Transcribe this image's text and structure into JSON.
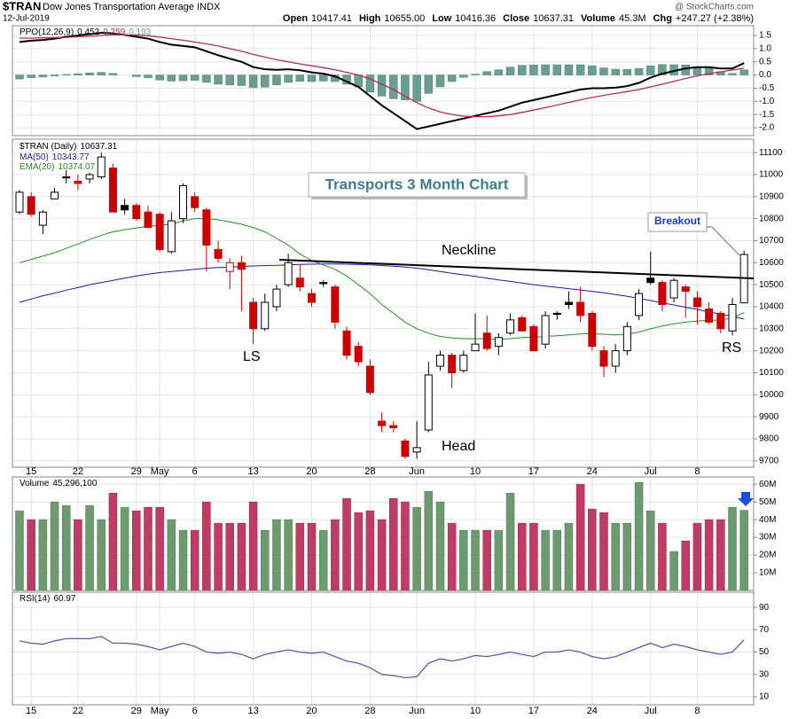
{
  "header": {
    "symbol": "$TRAN",
    "name": "Dow Jones Transportation Average INDX",
    "date": "12-Jul-2019",
    "source": "@ StockCharts.com",
    "quote": [
      [
        "Open",
        "10417.41"
      ],
      [
        "High",
        "10655.00"
      ],
      [
        "Low",
        "10416.36"
      ],
      [
        "Close",
        "10637.31"
      ],
      [
        "Volume",
        "45.3M"
      ],
      [
        "Chg",
        "+247.27 (+2.38%)"
      ]
    ]
  },
  "chart_data": [
    {
      "type": "line",
      "series": [
        {
          "name": "PPO(12,26,9)",
          "color": "#000000",
          "values": [
            1.25,
            1.3,
            1.33,
            1.38,
            1.45,
            1.5,
            1.55,
            1.6,
            1.58,
            1.52,
            1.45,
            1.38,
            1.25,
            1.15,
            1.1,
            1.05,
            0.9,
            0.75,
            0.62,
            0.5,
            0.3,
            0.22,
            0.2,
            0.22,
            0.18,
            0.1,
            0.05,
            -0.05,
            -0.25,
            -0.45,
            -0.8,
            -1.15,
            -1.45,
            -1.75,
            -2.05,
            -1.95,
            -1.85,
            -1.75,
            -1.65,
            -1.55,
            -1.45,
            -1.35,
            -1.2,
            -1.05,
            -0.95,
            -0.85,
            -0.75,
            -0.65,
            -0.55,
            -0.5,
            -0.5,
            -0.48,
            -0.42,
            -0.3,
            -0.1,
            0.05,
            0.15,
            0.25,
            0.3,
            0.3,
            0.25,
            0.25,
            0.452
          ]
        },
        {
          "color": "#b03050",
          "values": [
            1.4,
            1.4,
            1.41,
            1.42,
            1.43,
            1.45,
            1.47,
            1.5,
            1.52,
            1.52,
            1.51,
            1.49,
            1.44,
            1.38,
            1.32,
            1.25,
            1.18,
            1.1,
            1.0,
            0.9,
            0.78,
            0.68,
            0.58,
            0.5,
            0.42,
            0.35,
            0.28,
            0.2,
            0.1,
            0.0,
            -0.15,
            -0.35,
            -0.55,
            -0.8,
            -1.05,
            -1.25,
            -1.4,
            -1.5,
            -1.56,
            -1.58,
            -1.58,
            -1.55,
            -1.5,
            -1.42,
            -1.33,
            -1.24,
            -1.14,
            -1.04,
            -0.94,
            -0.85,
            -0.77,
            -0.7,
            -0.63,
            -0.55,
            -0.45,
            -0.35,
            -0.24,
            -0.13,
            -0.03,
            0.05,
            0.12,
            0.19,
            0.259
          ]
        },
        {
          "color": "#6a9e92",
          "style": "bar",
          "values": [
            -0.15,
            -0.1,
            -0.08,
            -0.04,
            0.02,
            0.05,
            0.08,
            0.1,
            0.06,
            0.0,
            -0.06,
            -0.11,
            -0.19,
            -0.23,
            -0.22,
            -0.2,
            -0.28,
            -0.35,
            -0.38,
            -0.4,
            -0.48,
            -0.46,
            -0.38,
            -0.28,
            -0.24,
            -0.25,
            -0.23,
            -0.25,
            -0.35,
            -0.45,
            -0.65,
            -0.8,
            -0.9,
            -0.95,
            -1.0,
            -0.7,
            -0.45,
            -0.25,
            -0.09,
            0.03,
            0.13,
            0.2,
            0.3,
            0.37,
            0.38,
            0.39,
            0.39,
            0.39,
            0.39,
            0.35,
            0.27,
            0.22,
            0.21,
            0.25,
            0.35,
            0.4,
            0.39,
            0.38,
            0.27,
            0.25,
            0.13,
            0.06,
            0.193
          ]
        }
      ],
      "ylim": [
        -2.3,
        1.87
      ],
      "yticks": [
        1.5,
        {
          "value": 1.0,
          "label": "1.0"
        },
        0.5,
        {
          "value": 0.0,
          "label": "0.0"
        },
        -0.5,
        {
          "value": -1.0,
          "label": "-1.0"
        },
        -1.5,
        {
          "value": -2.0,
          "label": "-2.0"
        }
      ],
      "grid": true
    },
    {
      "type": "candlestick",
      "name": "$TRAN (Daily)",
      "categories": [
        null,
        "15",
        null,
        null,
        null,
        "22",
        null,
        null,
        null,
        null,
        "29",
        null,
        "May",
        null,
        null,
        "6",
        null,
        null,
        null,
        null,
        "13",
        null,
        null,
        null,
        null,
        "20",
        null,
        null,
        null,
        null,
        "28",
        null,
        null,
        null,
        "Jun",
        null,
        null,
        null,
        null,
        "10",
        null,
        null,
        null,
        null,
        "17",
        null,
        null,
        null,
        null,
        "24",
        null,
        null,
        null,
        null,
        "Jul",
        null,
        null,
        null,
        "8",
        null,
        null,
        null,
        null
      ],
      "open": [
        10830,
        10900,
        10770,
        10890,
        10990,
        10970,
        10980,
        10990,
        11030,
        10860,
        10860,
        10830,
        10820,
        10650,
        10800,
        10900,
        10840,
        10660,
        10560,
        10600,
        10420,
        10300,
        10400,
        10500,
        10530,
        10460,
        10510,
        10490,
        10290,
        10220,
        10130,
        9880,
        9860,
        9790,
        9740,
        9840,
        10130,
        10180,
        10110,
        10200,
        10280,
        10220,
        10280,
        10350,
        10310,
        10230,
        10370,
        10420,
        10420,
        10370,
        10200,
        10130,
        10200,
        10360,
        10530,
        10510,
        10440,
        10490,
        10440,
        10390,
        10370,
        10290,
        10417.41
      ],
      "high": [
        10930,
        10920,
        10840,
        10940,
        11020,
        11000,
        11010,
        11100,
        11050,
        10890,
        10870,
        10860,
        10830,
        10830,
        10960,
        10920,
        10850,
        10700,
        10620,
        10630,
        10440,
        10460,
        10500,
        10640,
        10590,
        10480,
        10520,
        10500,
        10310,
        10240,
        10160,
        9920,
        9880,
        9800,
        9880,
        10150,
        10200,
        10190,
        10200,
        10370,
        10360,
        10280,
        10370,
        10360,
        10320,
        10380,
        10380,
        10470,
        10490,
        10380,
        10220,
        10230,
        10330,
        10480,
        10650,
        10520,
        10530,
        10500,
        10470,
        10420,
        10380,
        10440,
        10655
      ],
      "low": [
        10820,
        10810,
        10730,
        10890,
        10960,
        10930,
        10960,
        10980,
        10830,
        10820,
        10790,
        10760,
        10650,
        10640,
        10780,
        10830,
        10560,
        10600,
        10480,
        10380,
        10230,
        10290,
        10380,
        10490,
        10470,
        10400,
        10490,
        10300,
        10160,
        10130,
        10000,
        9830,
        9830,
        9710,
        9710,
        9830,
        10110,
        10030,
        10100,
        10200,
        10200,
        10180,
        10270,
        10290,
        10200,
        10210,
        10340,
        10390,
        10330,
        10200,
        10080,
        10100,
        10180,
        10340,
        10500,
        10380,
        10420,
        10350,
        10320,
        10320,
        10280,
        10270,
        10416.36
      ],
      "close": [
        10920,
        10820,
        10830,
        10920,
        10990,
        10960,
        11000,
        11080,
        10830,
        10840,
        10800,
        10760,
        10660,
        10790,
        10950,
        10850,
        10680,
        10620,
        10600,
        10570,
        10300,
        10420,
        10480,
        10600,
        10490,
        10420,
        10505,
        10330,
        10180,
        10150,
        10010,
        9860,
        9850,
        9720,
        9760,
        10090,
        10180,
        10100,
        10180,
        10230,
        10210,
        10260,
        10340,
        10290,
        10200,
        10360,
        10370,
        10410,
        10360,
        10220,
        10130,
        10200,
        10310,
        10460,
        10510,
        10410,
        10520,
        10470,
        10400,
        10330,
        10300,
        10410,
        10637.31
      ],
      "up_color": "#000000",
      "down_color": "#cc0000",
      "overlays": [
        {
          "name": "MA(50)",
          "color": "#1c1c9c",
          "values": [
            10420,
            10435,
            10450,
            10462,
            10475,
            10487,
            10500,
            10510,
            10520,
            10530,
            10540,
            10548,
            10555,
            10560,
            10565,
            10570,
            10575,
            10578,
            10580,
            10583,
            10585,
            10587,
            10588,
            10590,
            10592,
            10593,
            10594,
            10594,
            10593,
            10592,
            10590,
            10587,
            10584,
            10580,
            10575,
            10568,
            10560,
            10552,
            10545,
            10538,
            10530,
            10522,
            10515,
            10508,
            10500,
            10494,
            10488,
            10482,
            10476,
            10470,
            10463,
            10455,
            10447,
            10438,
            10428,
            10418,
            10408,
            10398,
            10388,
            10377,
            10366,
            10355,
            10343.77
          ]
        },
        {
          "name": "EMA(20)",
          "color": "#2a8a2a",
          "values": [
            10600,
            10615,
            10630,
            10645,
            10665,
            10685,
            10705,
            10725,
            10740,
            10750,
            10758,
            10765,
            10770,
            10775,
            10790,
            10800,
            10800,
            10795,
            10785,
            10775,
            10760,
            10740,
            10710,
            10680,
            10640,
            10610,
            10590,
            10570,
            10540,
            10500,
            10460,
            10410,
            10370,
            10330,
            10300,
            10280,
            10265,
            10258,
            10255,
            10255,
            10255,
            10252,
            10255,
            10260,
            10262,
            10265,
            10268,
            10272,
            10276,
            10278,
            10275,
            10272,
            10275,
            10285,
            10300,
            10312,
            10322,
            10330,
            10335,
            10338,
            10340,
            10348,
            10374.07
          ]
        }
      ],
      "ylim": [
        9671,
        11161
      ],
      "yticks": [
        11100,
        11000,
        10900,
        10800,
        10700,
        10600,
        10500,
        10400,
        10300,
        10200,
        10100,
        10000,
        9900,
        9800,
        9700
      ],
      "grid": true,
      "annotations": {
        "title": "Transports 3 Month Chart",
        "neckline": "Neckline",
        "ls": "LS",
        "head": "Head",
        "rs": "RS",
        "breakout": "Breakout"
      }
    },
    {
      "type": "bar",
      "name": "Volume",
      "values": [
        45,
        40,
        40,
        50,
        48,
        40,
        48,
        40,
        55,
        47,
        45,
        47,
        47,
        40,
        34,
        34,
        50,
        38,
        38,
        38,
        50,
        34,
        40,
        40,
        38,
        38,
        34,
        40,
        52,
        44,
        45,
        40,
        52,
        50,
        47,
        56,
        50,
        38,
        34,
        34,
        34,
        34,
        55,
        38,
        38,
        34,
        34,
        38,
        60,
        46,
        44,
        38,
        38,
        61,
        45,
        38,
        22,
        28,
        38,
        40,
        40,
        47,
        45.2961
      ],
      "value_labels": [
        null,
        null,
        null,
        null,
        null,
        null,
        null,
        null,
        null,
        null,
        null,
        null,
        null,
        null,
        null,
        null,
        null,
        null,
        null,
        null,
        null,
        null,
        null,
        null,
        null,
        null,
        null,
        null,
        null,
        null,
        null,
        null,
        null,
        null,
        null,
        null,
        null,
        null,
        null,
        null,
        null,
        null,
        null,
        null,
        null,
        null,
        null,
        null,
        null,
        null,
        null,
        null,
        null,
        null,
        null,
        null,
        null,
        null,
        null,
        null,
        null,
        null,
        "45,296,100"
      ],
      "up_color": "#6e9a70",
      "down_color": "#c13c64",
      "ylim": [
        0,
        64.1
      ],
      "yticks": [
        {
          "value": 60,
          "label": "60M"
        },
        {
          "value": 50,
          "label": "50M"
        },
        {
          "value": 40,
          "label": "40M"
        },
        {
          "value": 30,
          "label": "30M"
        },
        {
          "value": 20,
          "label": "20M"
        },
        {
          "value": 10,
          "label": "10M"
        }
      ],
      "grid": true
    },
    {
      "type": "line",
      "series": [
        {
          "name": "RSI(14)",
          "color": "#5560a0",
          "values": [
            60,
            58,
            57,
            60,
            62,
            62,
            62,
            64,
            58,
            58,
            57,
            55,
            52,
            55,
            58,
            55,
            50,
            49,
            50,
            48,
            44,
            48,
            50,
            52,
            50,
            49,
            50,
            46,
            42,
            40,
            36,
            30,
            29,
            27,
            28,
            40,
            44,
            42,
            44,
            47,
            46,
            48,
            50,
            48,
            46,
            50,
            50,
            52,
            50,
            46,
            44,
            46,
            50,
            54,
            58,
            54,
            57,
            55,
            52,
            50,
            48,
            50,
            60.97
          ]
        }
      ],
      "ylim": [
        2.8,
        103.6
      ],
      "yticks": [
        90,
        70,
        50,
        30,
        10
      ],
      "grid": true
    }
  ]
}
